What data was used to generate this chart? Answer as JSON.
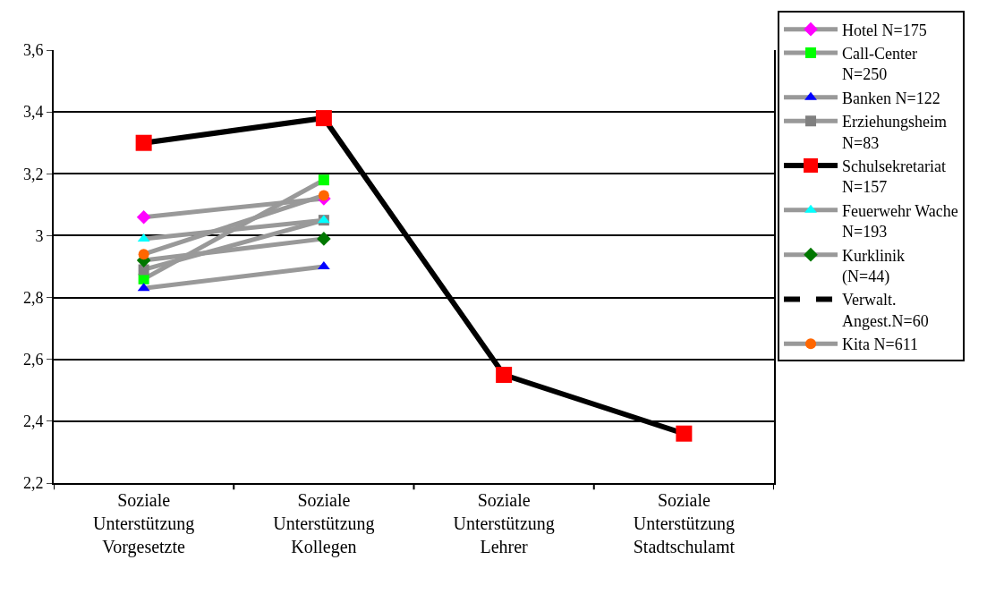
{
  "chart_data": {
    "type": "line",
    "categories": [
      "Soziale Unterstützung Vorgesetzte",
      "Soziale Unterstützung Kollegen",
      "Soziale Unterstützung Lehrer",
      "Soziale Unterstützung Stadtschulamt"
    ],
    "ylim": [
      2.2,
      3.6
    ],
    "yticks": [
      {
        "value": 2.2,
        "label": "2,2"
      },
      {
        "value": 2.4,
        "label": "2,4"
      },
      {
        "value": 2.6,
        "label": "2,6"
      },
      {
        "value": 2.8,
        "label": "2,8"
      },
      {
        "value": 3,
        "label": "3"
      },
      {
        "value": 3.2,
        "label": "3,2"
      },
      {
        "value": 3.4,
        "label": "3,4"
      },
      {
        "value": 3.6,
        "label": "3,6"
      }
    ],
    "grid": "y",
    "legend": "right",
    "series": [
      {
        "name": "Hotel N=175",
        "color": "#999999",
        "colors": [
          "#ff00ff",
          "#ff00ff",
          "#ff00ff",
          "#ff00ff"
        ],
        "marker": "diamond",
        "values": [
          3.06,
          3.12,
          null,
          null
        ]
      },
      {
        "name": "Call-Center N=250",
        "color": "#999999",
        "colors": [
          "#00ff00",
          "#00ff00",
          "#00ff00",
          "#00ff00"
        ],
        "marker": "square",
        "values": [
          2.86,
          3.18,
          null,
          null
        ]
      },
      {
        "name": "Banken N=122",
        "color": "#999999",
        "colors": [
          "#0000ff",
          "#0000ff",
          "#0000ff",
          "#0000ff"
        ],
        "marker": "triangle",
        "values": [
          2.83,
          2.9,
          null,
          null
        ]
      },
      {
        "name": "Erziehungsheim N=83",
        "color": "#999999",
        "colors": [
          "#808080",
          "#808080",
          "#808080",
          "#808080"
        ],
        "marker": "square",
        "values": [
          2.89,
          3.05,
          null,
          null
        ]
      },
      {
        "name": "Schulsekretariat N=157",
        "color": "#000000",
        "colors": [
          "#ff0000",
          "#ff0000",
          "#ff0000",
          "#ff0000"
        ],
        "marker": "square",
        "values": [
          3.3,
          3.38,
          2.55,
          2.36
        ]
      },
      {
        "name": "Feuerwehr Wache N=193",
        "color": "#999999",
        "colors": [
          "#00ffff",
          "#00ffff",
          "#00ffff",
          "#00ffff"
        ],
        "marker": "triangle",
        "values": [
          2.99,
          3.05,
          null,
          null
        ]
      },
      {
        "name": "Kurklinik (N=44)",
        "color": "#999999",
        "colors": [
          "#007700",
          "#007700",
          "#007700",
          "#007700"
        ],
        "marker": "diamond",
        "values": [
          2.92,
          2.99,
          null,
          null
        ]
      },
      {
        "name": "Verwalt. Angest.N=60",
        "color": "#000000",
        "marker": "none",
        "line_style": "dashed",
        "values": [
          null,
          null,
          null,
          null
        ]
      },
      {
        "name": "Kita N=611",
        "color": "#999999",
        "colors": [
          "#ff6600",
          "#ff6600",
          "#ff6600",
          "#ff6600"
        ],
        "marker": "circle",
        "values": [
          2.94,
          3.13,
          null,
          null
        ]
      }
    ]
  }
}
